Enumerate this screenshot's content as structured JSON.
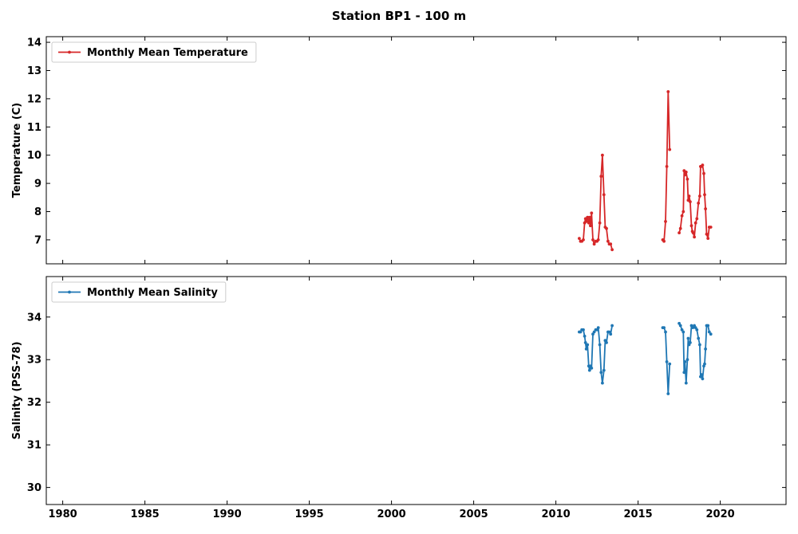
{
  "chart_data": {
    "type": "line",
    "title": "Station BP1 - 100 m",
    "xlim": [
      1979,
      2024
    ],
    "x_ticks": [
      1980,
      1985,
      1990,
      1995,
      2000,
      2005,
      2010,
      2015,
      2020
    ],
    "shared_x": true,
    "panels": [
      {
        "ylabel": "Temperature (C)",
        "ylim": [
          6.15,
          14.2
        ],
        "y_ticks": [
          7,
          8,
          9,
          10,
          11,
          12,
          13,
          14
        ],
        "legend_position": "top-left",
        "series": [
          {
            "name": "Monthly Mean Temperature",
            "color": "#d62728",
            "marker": "dot",
            "segments": [
              [
                [
                  2011.42,
                  7.05
                ],
                [
                  2011.5,
                  6.95
                ],
                [
                  2011.58,
                  6.95
                ],
                [
                  2011.67,
                  7.0
                ],
                [
                  2011.75,
                  7.6
                ],
                [
                  2011.8,
                  7.75
                ],
                [
                  2011.85,
                  7.65
                ],
                [
                  2011.92,
                  7.8
                ],
                [
                  2012.0,
                  7.6
                ],
                [
                  2012.05,
                  7.8
                ],
                [
                  2012.1,
                  7.5
                ],
                [
                  2012.17,
                  7.95
                ],
                [
                  2012.25,
                  7.0
                ],
                [
                  2012.33,
                  6.85
                ],
                [
                  2012.42,
                  6.95
                ],
                [
                  2012.5,
                  6.95
                ],
                [
                  2012.58,
                  7.0
                ],
                [
                  2012.67,
                  7.6
                ],
                [
                  2012.75,
                  9.25
                ],
                [
                  2012.83,
                  10.0
                ],
                [
                  2012.92,
                  8.6
                ],
                [
                  2013.0,
                  7.45
                ],
                [
                  2013.08,
                  7.4
                ],
                [
                  2013.17,
                  6.95
                ],
                [
                  2013.25,
                  6.85
                ],
                [
                  2013.33,
                  6.85
                ],
                [
                  2013.42,
                  6.65
                ]
              ],
              [
                [
                  2016.5,
                  7.0
                ],
                [
                  2016.58,
                  6.95
                ],
                [
                  2016.67,
                  7.65
                ],
                [
                  2016.75,
                  9.6
                ],
                [
                  2016.83,
                  12.25
                ],
                [
                  2016.92,
                  10.2
                ]
              ],
              [
                [
                  2017.5,
                  7.25
                ],
                [
                  2017.58,
                  7.4
                ],
                [
                  2017.67,
                  7.85
                ],
                [
                  2017.75,
                  8.0
                ],
                [
                  2017.8,
                  9.45
                ],
                [
                  2017.85,
                  9.3
                ],
                [
                  2017.92,
                  9.4
                ],
                [
                  2018.0,
                  9.15
                ],
                [
                  2018.05,
                  8.4
                ],
                [
                  2018.1,
                  8.55
                ],
                [
                  2018.17,
                  8.35
                ],
                [
                  2018.25,
                  7.5
                ],
                [
                  2018.3,
                  7.3
                ],
                [
                  2018.35,
                  7.25
                ],
                [
                  2018.42,
                  7.1
                ],
                [
                  2018.5,
                  7.6
                ],
                [
                  2018.58,
                  7.75
                ],
                [
                  2018.67,
                  8.3
                ],
                [
                  2018.75,
                  8.55
                ],
                [
                  2018.8,
                  9.6
                ],
                [
                  2018.85,
                  9.6
                ],
                [
                  2018.92,
                  9.65
                ],
                [
                  2019.0,
                  9.35
                ],
                [
                  2019.05,
                  8.6
                ],
                [
                  2019.1,
                  8.1
                ],
                [
                  2019.17,
                  7.2
                ],
                [
                  2019.25,
                  7.05
                ],
                [
                  2019.33,
                  7.45
                ],
                [
                  2019.42,
                  7.45
                ]
              ]
            ]
          }
        ]
      },
      {
        "ylabel": "Salinity (PSS-78)",
        "ylim": [
          29.6,
          34.95
        ],
        "y_ticks": [
          30,
          31,
          32,
          33,
          34
        ],
        "legend_position": "top-left",
        "series": [
          {
            "name": "Monthly Mean Salinity",
            "color": "#1f77b4",
            "marker": "dot",
            "segments": [
              [
                [
                  2011.42,
                  33.65
                ],
                [
                  2011.5,
                  33.65
                ],
                [
                  2011.58,
                  33.7
                ],
                [
                  2011.67,
                  33.7
                ],
                [
                  2011.75,
                  33.55
                ],
                [
                  2011.8,
                  33.4
                ],
                [
                  2011.85,
                  33.25
                ],
                [
                  2011.92,
                  33.35
                ],
                [
                  2012.0,
                  32.85
                ],
                [
                  2012.05,
                  32.75
                ],
                [
                  2012.1,
                  32.85
                ],
                [
                  2012.17,
                  32.8
                ],
                [
                  2012.25,
                  33.6
                ],
                [
                  2012.33,
                  33.65
                ],
                [
                  2012.42,
                  33.7
                ],
                [
                  2012.5,
                  33.7
                ],
                [
                  2012.58,
                  33.75
                ],
                [
                  2012.67,
                  33.35
                ],
                [
                  2012.75,
                  32.7
                ],
                [
                  2012.83,
                  32.45
                ],
                [
                  2012.92,
                  32.75
                ],
                [
                  2013.0,
                  33.45
                ],
                [
                  2013.08,
                  33.4
                ],
                [
                  2013.17,
                  33.65
                ],
                [
                  2013.25,
                  33.65
                ],
                [
                  2013.33,
                  33.6
                ],
                [
                  2013.42,
                  33.8
                ]
              ],
              [
                [
                  2016.5,
                  33.75
                ],
                [
                  2016.58,
                  33.75
                ],
                [
                  2016.67,
                  33.65
                ],
                [
                  2016.75,
                  32.95
                ],
                [
                  2016.83,
                  32.2
                ],
                [
                  2016.92,
                  32.9
                ]
              ],
              [
                [
                  2017.5,
                  33.85
                ],
                [
                  2017.58,
                  33.8
                ],
                [
                  2017.67,
                  33.7
                ],
                [
                  2017.75,
                  33.65
                ],
                [
                  2017.8,
                  32.7
                ],
                [
                  2017.85,
                  32.95
                ],
                [
                  2017.92,
                  32.45
                ],
                [
                  2018.0,
                  33.0
                ],
                [
                  2018.05,
                  33.5
                ],
                [
                  2018.1,
                  33.35
                ],
                [
                  2018.17,
                  33.4
                ],
                [
                  2018.25,
                  33.8
                ],
                [
                  2018.33,
                  33.75
                ],
                [
                  2018.42,
                  33.8
                ],
                [
                  2018.5,
                  33.75
                ],
                [
                  2018.58,
                  33.7
                ],
                [
                  2018.67,
                  33.5
                ],
                [
                  2018.75,
                  33.35
                ],
                [
                  2018.8,
                  32.6
                ],
                [
                  2018.85,
                  32.65
                ],
                [
                  2018.92,
                  32.55
                ],
                [
                  2019.0,
                  32.85
                ],
                [
                  2019.05,
                  32.9
                ],
                [
                  2019.1,
                  33.25
                ],
                [
                  2019.17,
                  33.8
                ],
                [
                  2019.25,
                  33.8
                ],
                [
                  2019.33,
                  33.65
                ],
                [
                  2019.42,
                  33.6
                ]
              ]
            ]
          }
        ]
      }
    ]
  }
}
